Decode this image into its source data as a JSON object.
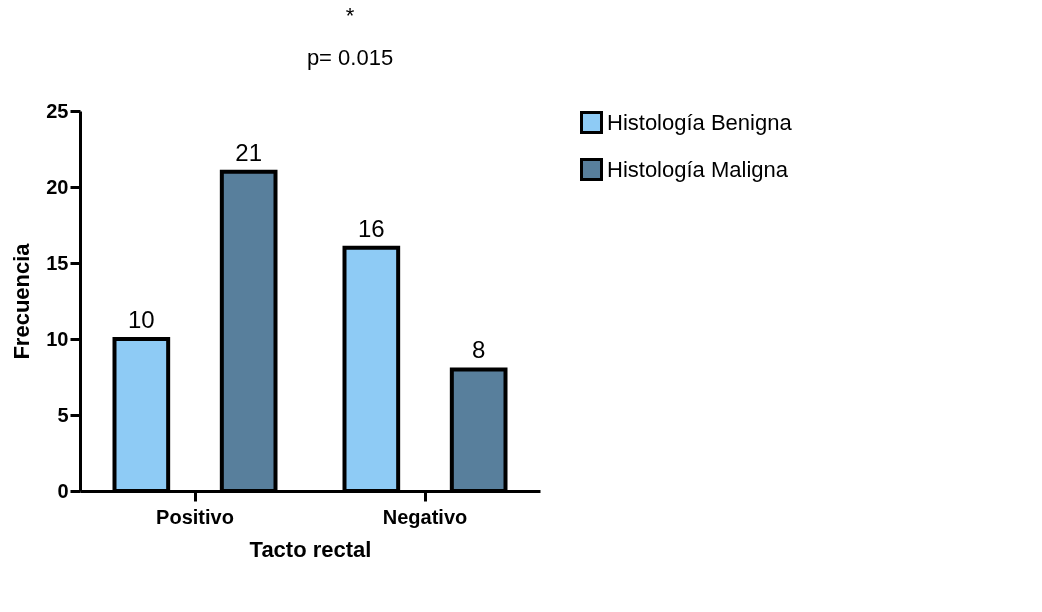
{
  "chart_data": {
    "type": "bar",
    "xlabel": "Tacto rectal",
    "ylabel": "Frecuencia",
    "categories": [
      "Positivo",
      "Negativo"
    ],
    "series": [
      {
        "name": "Histología Benigna",
        "color": "#8ecbf5",
        "values": [
          10,
          16
        ]
      },
      {
        "name": "Histología Maligna",
        "color": "#587f9c",
        "values": [
          21,
          8
        ]
      }
    ],
    "ylim": [
      0,
      25
    ],
    "yticks": [
      0,
      5,
      10,
      15,
      20,
      25
    ],
    "data_labels": true,
    "grid": false,
    "legend": "top right",
    "annotations": [
      "*",
      "p= 0.015"
    ]
  }
}
